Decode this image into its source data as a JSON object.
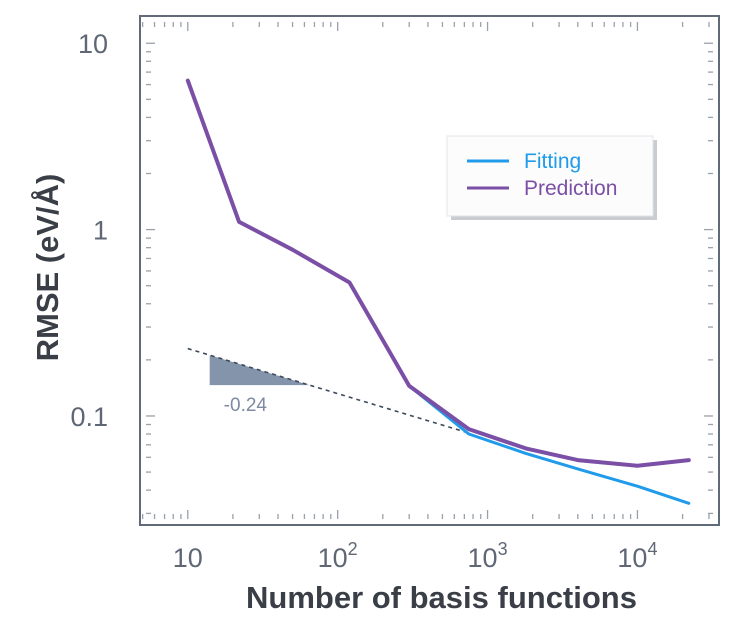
{
  "chart_data": {
    "type": "line",
    "title": "",
    "xlabel": "Number of basis functions",
    "ylabel": "RMSE (eV/Å)",
    "x_scale": "log",
    "y_scale": "log",
    "xlim": [
      4.8,
      35000
    ],
    "ylim": [
      0.026,
      14
    ],
    "x_ticks": [
      {
        "value": 10,
        "base": "10",
        "exp": ""
      },
      {
        "value": 100,
        "base": "10",
        "exp": "2"
      },
      {
        "value": 1000,
        "base": "10",
        "exp": "3"
      },
      {
        "value": 10000,
        "base": "10",
        "exp": "4"
      }
    ],
    "y_ticks": [
      {
        "value": 0.1,
        "label": "0.1"
      },
      {
        "value": 1,
        "label": "1"
      },
      {
        "value": 10,
        "label": "10"
      }
    ],
    "grid": false,
    "legend_position": "upper-right",
    "series": [
      {
        "name": "Fitting",
        "color": "#1f9bea",
        "x": [
          10,
          22,
          50,
          120,
          300,
          750,
          1800,
          4000,
          10000,
          22000
        ],
        "y": [
          6.3,
          1.1,
          0.78,
          0.52,
          0.145,
          0.08,
          0.063,
          0.052,
          0.042,
          0.034
        ]
      },
      {
        "name": "Prediction",
        "color": "#7b4fa6",
        "x": [
          10,
          22,
          50,
          120,
          300,
          750,
          1800,
          4000,
          10000,
          22000
        ],
        "y": [
          6.3,
          1.1,
          0.78,
          0.52,
          0.145,
          0.085,
          0.067,
          0.058,
          0.054,
          0.058
        ]
      }
    ],
    "trend": {
      "x": [
        10,
        750
      ],
      "y": [
        0.23,
        0.081
      ],
      "color": "#3d4a5c",
      "slope_label": "-0.24",
      "triangle_x": [
        14,
        65
      ],
      "triangle_color": "#8494ab"
    },
    "colors": {
      "frame": "#5f6b78",
      "tick": "#9aa1aa"
    }
  }
}
